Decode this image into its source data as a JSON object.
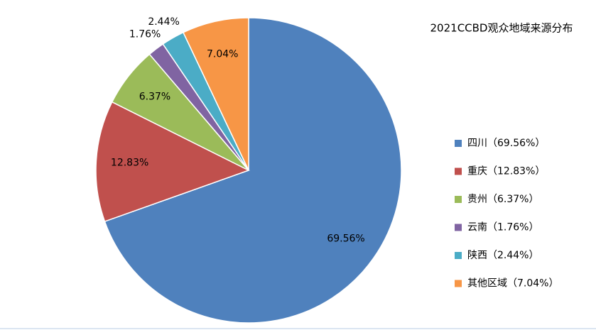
{
  "chart_data": {
    "type": "pie",
    "title": "2021CCBD观众地域来源分布",
    "categories": [
      "四川",
      "重庆",
      "贵州",
      "云南",
      "陕西",
      "其他区域"
    ],
    "legend_labels": [
      "四川（69.56%）",
      "重庆（12.83%）",
      "贵州（6.37%）",
      "云南（1.76%）",
      "陕西（2.44%）",
      "其他区域（7.04%）"
    ],
    "values": [
      69.56,
      12.83,
      6.37,
      1.76,
      2.44,
      7.04
    ],
    "value_labels": [
      "69.56%",
      "12.83%",
      "6.37%",
      "1.76%",
      "2.44%",
      "7.04%"
    ],
    "colors": [
      "#4f81bd",
      "#c0504d",
      "#9bbb59",
      "#8064a2",
      "#4bacc6",
      "#f79646"
    ],
    "legend": "right"
  }
}
